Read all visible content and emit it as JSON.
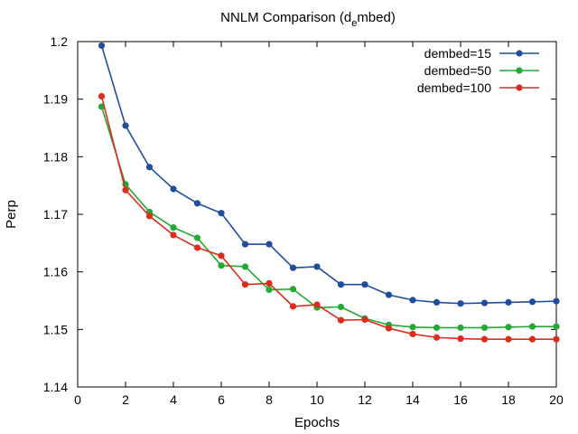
{
  "chart_data": {
    "type": "line",
    "title": "NNLM Comparison (d",
    "title_sub": "e",
    "title_rest": "mbed)",
    "xlabel": "Epochs",
    "ylabel": "Perp",
    "xlim": [
      0,
      20
    ],
    "ylim": [
      1.14,
      1.2
    ],
    "xticks": [
      "0",
      "2",
      "4",
      "6",
      "8",
      "10",
      "12",
      "14",
      "16",
      "18",
      "20"
    ],
    "yticks": [
      "1.14",
      "1.15",
      "1.16",
      "1.17",
      "1.18",
      "1.19",
      "1.2"
    ],
    "grid": false,
    "legend_position": "top-right",
    "x": [
      1,
      2,
      3,
      4,
      5,
      6,
      7,
      8,
      9,
      10,
      11,
      12,
      13,
      14,
      15,
      16,
      17,
      18,
      19,
      20
    ],
    "series": [
      {
        "name": "dembed=15",
        "color": "#1f4e9e",
        "values": [
          1.1993,
          1.1854,
          1.1782,
          1.1744,
          1.1719,
          1.1702,
          1.1648,
          1.1648,
          1.1607,
          1.1609,
          1.1578,
          1.1578,
          1.156,
          1.1551,
          1.1547,
          1.1545,
          1.1546,
          1.1547,
          1.1548,
          1.1549
        ]
      },
      {
        "name": "dembed=50",
        "color": "#22aa33",
        "values": [
          1.1887,
          1.1752,
          1.1704,
          1.1677,
          1.1659,
          1.1611,
          1.1609,
          1.1569,
          1.157,
          1.1538,
          1.1539,
          1.1519,
          1.1508,
          1.1504,
          1.1503,
          1.1503,
          1.1503,
          1.1504,
          1.1505,
          1.1505
        ]
      },
      {
        "name": "dembed=100",
        "color": "#dd2b1c",
        "values": [
          1.1905,
          1.1742,
          1.1697,
          1.1664,
          1.1642,
          1.1628,
          1.1578,
          1.158,
          1.154,
          1.1543,
          1.1516,
          1.1517,
          1.1502,
          1.1492,
          1.1486,
          1.1484,
          1.1483,
          1.1483,
          1.1483,
          1.1483
        ]
      }
    ]
  }
}
